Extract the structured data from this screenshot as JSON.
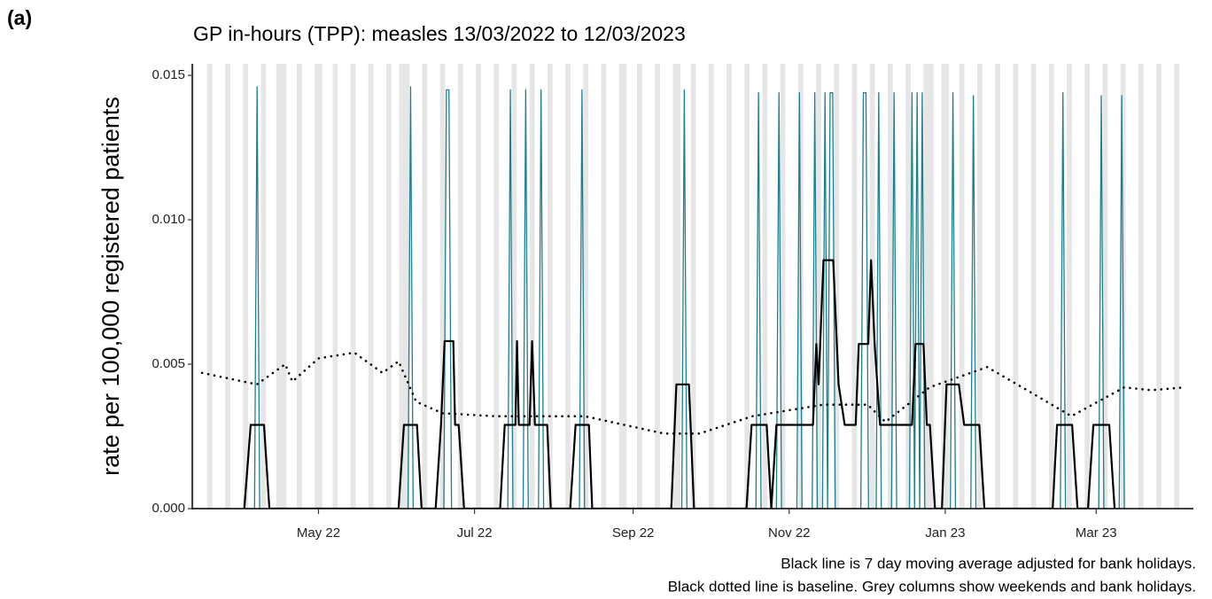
{
  "chart_data": {
    "type": "line",
    "panel_label": "(a)",
    "title": "GP in-hours (TPP): measles 13/03/2022 to 12/03/2023",
    "y_label": "rate per 100,000 registered patients",
    "caption": [
      "Black line is 7 day moving average adjusted for bank holidays.",
      "Black dotted line is baseline. Grey columns show weekends and bank holidays."
    ],
    "xlim": [
      0,
      391
    ],
    "ylim": [
      0,
      0.0154
    ],
    "xticks": [
      {
        "value": 49,
        "label": "May 22"
      },
      {
        "value": 110,
        "label": "Jul 22"
      },
      {
        "value": 172,
        "label": "Sep 22"
      },
      {
        "value": 233,
        "label": "Nov 22"
      },
      {
        "value": 294,
        "label": "Jan 23"
      },
      {
        "value": 353,
        "label": "Mar 23"
      }
    ],
    "yticks": [
      {
        "value": 0,
        "label": "0.000"
      },
      0.005,
      {
        "value": 0.01,
        "label": "0.010"
      },
      0.015
    ],
    "shaded_color": "#e6e6e6",
    "shaded": [
      [
        -0.5,
        0.5
      ],
      [
        5.5,
        7.5
      ],
      [
        12.5,
        14.5
      ],
      [
        19.5,
        21.5
      ],
      [
        26.5,
        28.5
      ],
      [
        32.5,
        36.5
      ],
      [
        40.5,
        42.5
      ],
      [
        47.5,
        50.5
      ],
      [
        54.5,
        56.5
      ],
      [
        61.5,
        63.5
      ],
      [
        68.5,
        70.5
      ],
      [
        75.5,
        77.5
      ],
      [
        80.5,
        84.5
      ],
      [
        89.5,
        91.5
      ],
      [
        96.5,
        98.5
      ],
      [
        103.5,
        105.5
      ],
      [
        110.5,
        112.5
      ],
      [
        117.5,
        119.5
      ],
      [
        124.5,
        126.5
      ],
      [
        131.5,
        133.5
      ],
      [
        138.5,
        140.5
      ],
      [
        145.5,
        147.5
      ],
      [
        152.5,
        154.5
      ],
      [
        159.5,
        161.5
      ],
      [
        166.5,
        169.5
      ],
      [
        173.5,
        175.5
      ],
      [
        180.5,
        182.5
      ],
      [
        187.5,
        190.5
      ],
      [
        194.5,
        196.5
      ],
      [
        201.5,
        203.5
      ],
      [
        208.5,
        210.5
      ],
      [
        215.5,
        217.5
      ],
      [
        222.5,
        224.5
      ],
      [
        229.5,
        231.5
      ],
      [
        236.5,
        238.5
      ],
      [
        243.5,
        245.5
      ],
      [
        250.5,
        252.5
      ],
      [
        257.5,
        259.5
      ],
      [
        264.5,
        266.5
      ],
      [
        271.5,
        273.5
      ],
      [
        278.5,
        280.5
      ],
      [
        285.5,
        289.5
      ],
      [
        292.5,
        295.5
      ],
      [
        299.5,
        301.5
      ],
      [
        306.5,
        308.5
      ],
      [
        313.5,
        315.5
      ],
      [
        320.5,
        322.5
      ],
      [
        327.5,
        329.5
      ],
      [
        334.5,
        336.5
      ],
      [
        341.5,
        343.5
      ],
      [
        348.5,
        350.5
      ],
      [
        355.5,
        357.5
      ],
      [
        362.5,
        364.5
      ],
      [
        369.5,
        371.5
      ],
      [
        376.5,
        378.5
      ],
      [
        383.5,
        385.5
      ]
    ],
    "series": [
      {
        "color": "#1b7f8f",
        "dash": "solid",
        "x": [
          0,
          24,
          25,
          26,
          84,
          85,
          86,
          98,
          99,
          100,
          101,
          123,
          124,
          125,
          129,
          130,
          131,
          135,
          136,
          137,
          151,
          152,
          153,
          191,
          192,
          193,
          220,
          221,
          222,
          228,
          229,
          230,
          236,
          237,
          238,
          242,
          243,
          244,
          246,
          247,
          248,
          249,
          250,
          251,
          261,
          262,
          263,
          264,
          267,
          268,
          269,
          273,
          274,
          275,
          280,
          281,
          282,
          283,
          284,
          285,
          286,
          296,
          297,
          298,
          304,
          305,
          306,
          339,
          340,
          341,
          354,
          355,
          356,
          362,
          363,
          364
        ],
        "values": [
          0,
          0,
          0.0146,
          0,
          0,
          0.0146,
          0,
          0,
          0.0145,
          0.0145,
          0,
          0,
          0.0145,
          0,
          0,
          0.0145,
          0,
          0,
          0.0145,
          0,
          0,
          0.0145,
          0,
          0,
          0.0145,
          0,
          0,
          0.0144,
          0,
          0,
          0.0144,
          0,
          0,
          0.0144,
          0,
          0,
          0.0144,
          0,
          0,
          0.0144,
          0,
          0.0144,
          0.0144,
          0,
          0,
          0.0144,
          0.0144,
          0,
          0,
          0.0144,
          0,
          0,
          0.0144,
          0,
          0,
          0.0144,
          0,
          0.0144,
          0,
          0.0144,
          0,
          0,
          0.0144,
          0,
          0,
          0.0143,
          0,
          0,
          0.0144,
          0,
          0,
          0.0143,
          0,
          0,
          0.0143,
          0
        ]
      },
      {
        "color": "#000000",
        "dash": "solid",
        "x": [
          20,
          22.5,
          27.7,
          29.8,
          80.3,
          82.4,
          87.5,
          89.3,
          94.8,
          96.9,
          98.3,
          101.7,
          102.4,
          103.8,
          105.9,
          120,
          121.8,
          126,
          126.6,
          127.3,
          131.5,
          132.5,
          133.6,
          138.4,
          139.8,
          147.4,
          149.5,
          154.7,
          156,
          186.9,
          188.9,
          193.8,
          195.8,
          216.3,
          218.3,
          224.2,
          226,
          228,
          242.3,
          243.6,
          244.5,
          246.4,
          250.2,
          252.3,
          254.7,
          259,
          260.2,
          263.9,
          265,
          266.4,
          268.5,
          281,
          282.4,
          285.5,
          286.8,
          288,
          290,
          292.7,
          294.5,
          299.3,
          301.4,
          307.3,
          309.3,
          336,
          337.7,
          343.6,
          345.7,
          349.8,
          351.9,
          358.1,
          360.2
        ],
        "values": [
          0,
          0.0029,
          0.0029,
          0,
          0,
          0.0029,
          0.0029,
          0,
          0,
          0.0029,
          0.0058,
          0.0058,
          0.0029,
          0.0029,
          0,
          0,
          0.0029,
          0.0029,
          0.0058,
          0.0029,
          0.0029,
          0.0058,
          0.0029,
          0.0029,
          0,
          0,
          0.0029,
          0.0029,
          0,
          0,
          0.0043,
          0.0043,
          0,
          0,
          0.0029,
          0.0029,
          0,
          0.0029,
          0.0029,
          0.0057,
          0.0043,
          0.0086,
          0.0086,
          0.0043,
          0.0029,
          0.0029,
          0.0057,
          0.0057,
          0.0086,
          0.0057,
          0.0029,
          0.0029,
          0.0057,
          0.0057,
          0.0029,
          0.0029,
          0,
          0,
          0.0043,
          0.0043,
          0.0029,
          0.0029,
          0,
          0,
          0.0029,
          0.0029,
          0,
          0,
          0.0029,
          0.0029,
          0
        ]
      },
      {
        "color": "#000000",
        "dash": "dotted",
        "x": [
          3.5,
          24.9,
          36,
          38.8,
          49,
          63,
          74,
          80.3,
          87.2,
          97.6,
          118,
          153,
          184,
          198,
          218.7,
          246.4,
          263.7,
          270.6,
          287.9,
          310.4,
          326,
          343.3,
          364,
          374.4,
          388
        ],
        "values": [
          0.0047,
          0.0043,
          0.005,
          0.0044,
          0.0052,
          0.0054,
          0.0047,
          0.0051,
          0.0037,
          0.0033,
          0.0032,
          0.0032,
          0.0026,
          0.0026,
          0.0032,
          0.0036,
          0.0036,
          0.003,
          0.0042,
          0.0049,
          0.0041,
          0.0032,
          0.0042,
          0.0041,
          0.0042
        ]
      }
    ]
  }
}
